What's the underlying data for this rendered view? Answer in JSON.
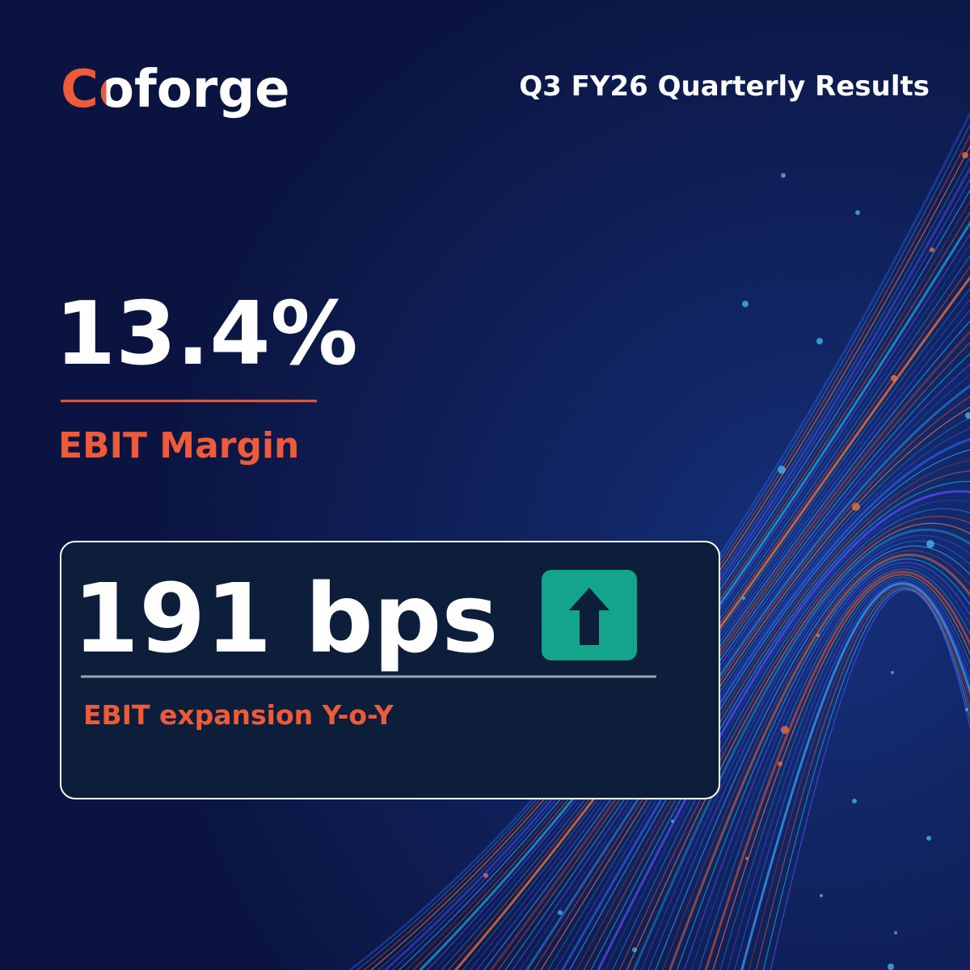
{
  "header": {
    "logo": "Coforge",
    "title": "Q3 FY26 Quarterly Results"
  },
  "metric": {
    "value": "13.4%",
    "label": "EBIT Margin"
  },
  "highlight": {
    "value": "191 bps",
    "label": "EBIT expansion Y-o-Y"
  }
}
